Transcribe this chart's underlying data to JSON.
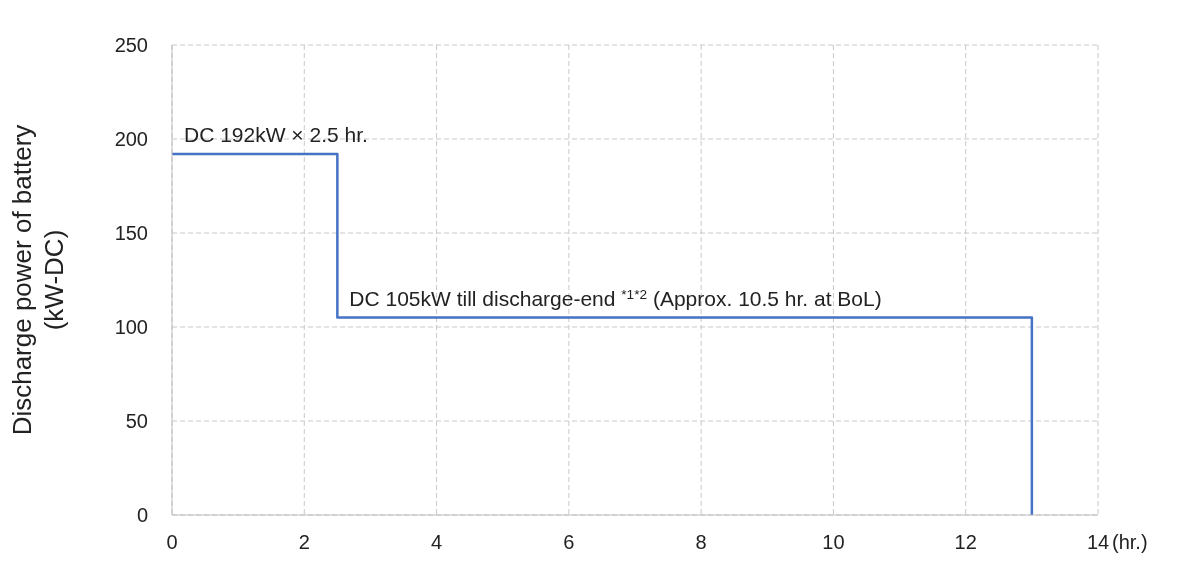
{
  "chart_data": {
    "type": "line",
    "ylabel": "Discharge power of battery\n(kW-DC)",
    "xlabel": "(hr.)",
    "x": [
      0,
      2.5,
      2.5,
      13,
      13
    ],
    "series": [
      {
        "color": "#4472c4",
        "values": [
          192,
          192,
          105,
          105,
          0
        ]
      }
    ],
    "xlim": [
      0,
      14
    ],
    "xticks": [
      0,
      2,
      4,
      6,
      8,
      10,
      12,
      14
    ],
    "ylim": [
      0,
      250
    ],
    "yticks": [
      0,
      50,
      100,
      150,
      200,
      250
    ],
    "grid": true,
    "line_style": "solid",
    "annotations": [
      {
        "text": "DC 192kW × 2.5 hr.",
        "x": 0,
        "y": 192
      },
      {
        "text": "DC 105kW till discharge-end $^{*1*2}$ (Approx. 10.5 hr. at BoL)",
        "x": 2.5,
        "y": 105
      }
    ]
  }
}
